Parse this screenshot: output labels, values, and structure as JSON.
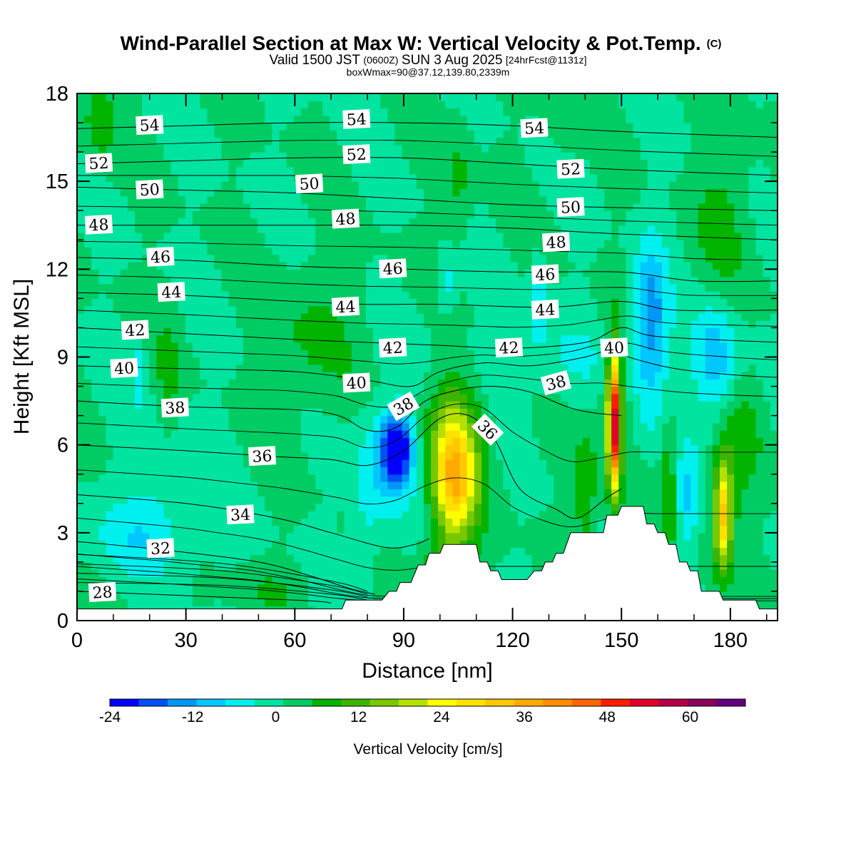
{
  "title": {
    "main": "Wind-Parallel Section at Max W: Vertical Velocity & Pot.Temp.",
    "copyright": "(C)",
    "valid_prefix": "Valid 1500 JST",
    "valid_utc": "(0600Z)",
    "valid_date": "SUN 3 Aug 2025",
    "forecast": "[24hrFcst@1131z]",
    "box": "boxWmax=90@37.12,139.80,2339m"
  },
  "chart_data": {
    "type": "heatmap",
    "xlabel": "Distance [nm]",
    "ylabel": "Height [Kft MSL]",
    "xlim": [
      0,
      193
    ],
    "ylim": [
      0,
      18
    ],
    "x_ticks": [
      "0",
      "30",
      "60",
      "90",
      "120",
      "150",
      "180"
    ],
    "y_ticks": [
      "0",
      "3",
      "6",
      "9",
      "12",
      "15",
      "18"
    ],
    "colorbar": {
      "label": "Vertical Velocity [cm/s]",
      "tick_labels": [
        "-24",
        "-12",
        "0",
        "12",
        "24",
        "36",
        "48",
        "60"
      ],
      "min": -24,
      "max": 68,
      "step": 4,
      "colors": [
        "#0000ff",
        "#0050f5",
        "#0096f5",
        "#00c8ff",
        "#00f0f0",
        "#00e4a0",
        "#00cc64",
        "#00b400",
        "#3cb400",
        "#78c800",
        "#b4e100",
        "#ffff00",
        "#ffe100",
        "#ffc800",
        "#ffaa00",
        "#ff8c00",
        "#ff6400",
        "#ff1e00",
        "#e10028",
        "#b40046",
        "#8c005a",
        "#64007d"
      ]
    },
    "terrain": [
      [
        0,
        0.4
      ],
      [
        73,
        0.4
      ],
      [
        74,
        0.7
      ],
      [
        84,
        0.7
      ],
      [
        86,
        1.0
      ],
      [
        88,
        1.0
      ],
      [
        89,
        1.3
      ],
      [
        92,
        1.3
      ],
      [
        94,
        1.9
      ],
      [
        96,
        1.9
      ],
      [
        97,
        2.3
      ],
      [
        100,
        2.3
      ],
      [
        101,
        2.6
      ],
      [
        110,
        2.6
      ],
      [
        111,
        2.0
      ],
      [
        113,
        2.0
      ],
      [
        114,
        1.7
      ],
      [
        116,
        1.7
      ],
      [
        117,
        1.4
      ],
      [
        124,
        1.4
      ],
      [
        126,
        1.7
      ],
      [
        128,
        1.7
      ],
      [
        129,
        2.0
      ],
      [
        131,
        2.0
      ],
      [
        132,
        2.3
      ],
      [
        134,
        2.3
      ],
      [
        136,
        3.0
      ],
      [
        145,
        3.0
      ],
      [
        146,
        3.6
      ],
      [
        149,
        3.6
      ],
      [
        150,
        3.9
      ],
      [
        156,
        3.9
      ],
      [
        157,
        3.3
      ],
      [
        159,
        3.3
      ],
      [
        160,
        3.0
      ],
      [
        162,
        3.0
      ],
      [
        163,
        2.6
      ],
      [
        165,
        2.6
      ],
      [
        166,
        2.0
      ],
      [
        168,
        2.0
      ],
      [
        169,
        1.7
      ],
      [
        171,
        1.7
      ],
      [
        172,
        1.0
      ],
      [
        177,
        1.0
      ],
      [
        178,
        0.7
      ],
      [
        187,
        0.7
      ],
      [
        188,
        0.4
      ],
      [
        193,
        0.4
      ]
    ],
    "w_features": [
      {
        "x": 104,
        "z": 5.0,
        "sx": 5.5,
        "sz": 2.2,
        "amp": 24
      },
      {
        "x": 104,
        "z": 5.5,
        "sx": 9,
        "sz": 3.2,
        "amp": 10
      },
      {
        "x": 148,
        "z": 6.8,
        "sx": 1.6,
        "sz": 2.2,
        "amp": 46
      },
      {
        "x": 148,
        "z": 7.0,
        "sx": 4,
        "sz": 3.2,
        "amp": 8
      },
      {
        "x": 178,
        "z": 3.6,
        "sx": 2.3,
        "sz": 1.8,
        "amp": 24
      },
      {
        "x": 178,
        "z": 4.0,
        "sx": 5,
        "sz": 2.5,
        "amp": 6
      },
      {
        "x": 88,
        "z": 5.9,
        "sx": 4,
        "sz": 1.1,
        "amp": -24
      },
      {
        "x": 86,
        "z": 5.4,
        "sx": 9,
        "sz": 2.0,
        "amp": -8
      },
      {
        "x": 80,
        "z": 3.5,
        "sx": 4,
        "sz": 2.0,
        "amp": -4
      },
      {
        "x": 158,
        "z": 9.5,
        "sx": 5,
        "sz": 3.0,
        "amp": -10
      },
      {
        "x": 176,
        "z": 9.0,
        "sx": 6,
        "sz": 2.0,
        "amp": -11
      },
      {
        "x": 168,
        "z": 4.0,
        "sx": 3,
        "sz": 2.0,
        "amp": -8
      },
      {
        "x": 158,
        "z": 11.0,
        "sx": 4,
        "sz": 2.0,
        "amp": -6
      },
      {
        "x": 124,
        "z": 9.0,
        "sx": 30,
        "sz": 1.5,
        "amp": -4
      },
      {
        "x": 18,
        "z": 2.8,
        "sx": 16,
        "sz": 1.3,
        "amp": -6
      },
      {
        "x": 25,
        "z": 5.0,
        "sx": 12,
        "sz": 2.0,
        "amp": -4
      },
      {
        "x": 17,
        "z": 8.5,
        "sx": 2,
        "sz": 1.0,
        "amp": -7
      },
      {
        "x": 102,
        "z": 11.5,
        "sx": 3,
        "sz": 1.0,
        "amp": -7
      },
      {
        "x": 127,
        "z": 11.2,
        "sx": 2,
        "sz": 1.3,
        "amp": -7
      },
      {
        "x": 25,
        "z": 8.0,
        "sx": 3,
        "sz": 2.5,
        "amp": 5
      },
      {
        "x": 65,
        "z": 9.5,
        "sx": 12,
        "sz": 2.5,
        "amp": 5
      },
      {
        "x": 105,
        "z": 15.0,
        "sx": 4,
        "sz": 2.0,
        "amp": 5
      },
      {
        "x": 6,
        "z": 17.0,
        "sx": 5,
        "sz": 1.5,
        "amp": 6
      },
      {
        "x": 178,
        "z": 13.5,
        "sx": 8,
        "sz": 3.0,
        "amp": 5
      },
      {
        "x": 135,
        "z": 17.0,
        "sx": 5,
        "sz": 1.0,
        "amp": 4
      },
      {
        "x": 100,
        "z": 1.5,
        "sx": 5,
        "sz": 1.0,
        "amp": 8
      },
      {
        "x": 52,
        "z": 1.0,
        "sx": 8,
        "sz": 0.8,
        "amp": 4
      },
      {
        "x": 140,
        "z": 4.5,
        "sx": 3,
        "sz": 2.0,
        "amp": 8
      },
      {
        "x": 163,
        "z": 4.5,
        "sx": 2,
        "sz": 2.5,
        "amp": 8
      },
      {
        "x": 184,
        "z": 6.5,
        "sx": 5,
        "sz": 2.0,
        "amp": 5
      }
    ],
    "theta_contours": [
      {
        "value": 28,
        "label": "28",
        "pts": [
          [
            0,
            1.0
          ],
          [
            60,
            0.7
          ],
          [
            70,
            0.6
          ]
        ],
        "lx": 7,
        "ly": 0.95
      },
      {
        "value": 32,
        "label": "32",
        "pts": [
          [
            0,
            2.7
          ],
          [
            25,
            2.4
          ],
          [
            50,
            2.0
          ],
          [
            65,
            1.5
          ],
          [
            75,
            1.1
          ],
          [
            82,
            0.9
          ]
        ],
        "lx": 23,
        "ly": 2.45
      },
      {
        "value": 34,
        "label": "34",
        "pts": [
          [
            0,
            4.3
          ],
          [
            30,
            4.0
          ],
          [
            55,
            3.5
          ],
          [
            70,
            3.0
          ],
          [
            85,
            2.5
          ],
          [
            93,
            2.6
          ],
          [
            97,
            2.8
          ]
        ],
        "lx": 45,
        "ly": 3.6
      },
      {
        "value": 36,
        "label": "36",
        "pts": [
          [
            0,
            6.0
          ],
          [
            30,
            5.8
          ],
          [
            55,
            5.6
          ],
          [
            70,
            5.5
          ],
          [
            80,
            5.3
          ],
          [
            90,
            5.8
          ],
          [
            100,
            6.9
          ],
          [
            108,
            7.0
          ],
          [
            115,
            6.2
          ],
          [
            122,
            4.5
          ],
          [
            132,
            3.8
          ],
          [
            138,
            3.5
          ],
          [
            146,
            4.2
          ],
          [
            150,
            4.5
          ]
        ],
        "lx": 51,
        "ly": 5.6,
        "rot": 0
      },
      {
        "value": 38,
        "label": "38",
        "pts": [
          [
            0,
            7.5
          ],
          [
            30,
            7.3
          ],
          [
            60,
            7.2
          ],
          [
            72,
            7.0
          ],
          [
            80,
            6.5
          ],
          [
            88,
            6.6
          ],
          [
            96,
            7.5
          ],
          [
            106,
            7.9
          ],
          [
            115,
            8.0
          ],
          [
            125,
            7.8
          ],
          [
            135,
            7.3
          ],
          [
            142,
            7.1
          ],
          [
            150,
            7.0
          ]
        ],
        "lx": 27,
        "ly": 7.25
      },
      {
        "value": 40,
        "label": "40",
        "pts": [
          [
            0,
            8.7
          ],
          [
            30,
            8.6
          ],
          [
            60,
            8.5
          ],
          [
            80,
            8.2
          ],
          [
            92,
            8.0
          ],
          [
            100,
            8.5
          ],
          [
            112,
            8.8
          ],
          [
            125,
            8.7
          ],
          [
            140,
            9.0
          ],
          [
            148,
            9.3
          ],
          [
            152,
            9.0
          ],
          [
            165,
            8.6
          ],
          [
            180,
            8.4
          ],
          [
            193,
            8.3
          ]
        ],
        "lx": 13,
        "ly": 8.6
      },
      {
        "value": 42,
        "label": "42",
        "pts": [
          [
            0,
            10.0
          ],
          [
            30,
            9.8
          ],
          [
            60,
            9.6
          ],
          [
            80,
            9.5
          ],
          [
            100,
            9.4
          ],
          [
            120,
            9.3
          ],
          [
            140,
            9.5
          ],
          [
            150,
            10.0
          ],
          [
            160,
            9.7
          ],
          [
            193,
            9.5
          ]
        ],
        "lx": 16,
        "ly": 9.9
      },
      {
        "value": 44,
        "label": "44",
        "pts": [
          [
            0,
            11.2
          ],
          [
            30,
            11.1
          ],
          [
            60,
            10.9
          ],
          [
            80,
            10.8
          ],
          [
            100,
            10.8
          ],
          [
            130,
            10.7
          ],
          [
            150,
            10.9
          ],
          [
            165,
            10.6
          ],
          [
            193,
            10.6
          ]
        ],
        "lx": 26,
        "ly": 11.2
      },
      {
        "value": 46,
        "label": "46",
        "pts": [
          [
            0,
            12.4
          ],
          [
            30,
            12.3
          ],
          [
            60,
            12.1
          ],
          [
            90,
            12.0
          ],
          [
            120,
            11.9
          ],
          [
            150,
            11.9
          ],
          [
            170,
            11.6
          ],
          [
            193,
            11.6
          ]
        ],
        "lx": 23,
        "ly": 12.4
      },
      {
        "value": 48,
        "label": "48",
        "pts": [
          [
            0,
            13.5
          ],
          [
            30,
            13.5
          ],
          [
            60,
            13.5
          ],
          [
            90,
            13.5
          ],
          [
            120,
            13.4
          ],
          [
            150,
            13.2
          ],
          [
            193,
            13.0
          ]
        ],
        "lx": 6,
        "ly": 13.5
      },
      {
        "value": 50,
        "label": "50",
        "pts": [
          [
            0,
            14.8
          ],
          [
            30,
            14.7
          ],
          [
            60,
            14.6
          ],
          [
            90,
            14.4
          ],
          [
            120,
            14.2
          ],
          [
            150,
            14.1
          ],
          [
            193,
            14.0
          ]
        ],
        "lx": 20,
        "ly": 14.7
      },
      {
        "value": 52,
        "label": "52",
        "pts": [
          [
            0,
            15.6
          ],
          [
            30,
            15.7
          ],
          [
            60,
            15.8
          ],
          [
            90,
            15.8
          ],
          [
            120,
            15.6
          ],
          [
            150,
            15.4
          ],
          [
            193,
            15.2
          ]
        ],
        "lx": 6,
        "ly": 15.6
      },
      {
        "value": 54,
        "label": "54",
        "pts": [
          [
            0,
            16.8
          ],
          [
            30,
            16.9
          ],
          [
            60,
            17.0
          ],
          [
            90,
            17.0
          ],
          [
            120,
            16.9
          ],
          [
            150,
            16.7
          ],
          [
            193,
            16.5
          ]
        ],
        "lx": 20,
        "ly": 16.9
      }
    ],
    "extra_labels": [
      {
        "label": "36",
        "x": 113,
        "y": 6.5,
        "rot": 45
      },
      {
        "label": "38",
        "x": 90,
        "y": 7.3,
        "rot": -30
      },
      {
        "label": "38",
        "x": 132,
        "y": 8.1,
        "rot": -15
      },
      {
        "label": "40",
        "x": 77,
        "y": 8.1
      },
      {
        "label": "40",
        "x": 148,
        "y": 9.3
      },
      {
        "label": "42",
        "x": 87,
        "y": 9.3
      },
      {
        "label": "42",
        "x": 119,
        "y": 9.3
      },
      {
        "label": "44",
        "x": 74,
        "y": 10.7
      },
      {
        "label": "44",
        "x": 129,
        "y": 10.6
      },
      {
        "label": "46",
        "x": 87,
        "y": 12.0
      },
      {
        "label": "46",
        "x": 129,
        "y": 11.8
      },
      {
        "label": "48",
        "x": 74,
        "y": 13.7
      },
      {
        "label": "48",
        "x": 132,
        "y": 12.9
      },
      {
        "label": "50",
        "x": 64,
        "y": 14.9
      },
      {
        "label": "50",
        "x": 136,
        "y": 14.1
      },
      {
        "label": "52",
        "x": 77,
        "y": 15.9
      },
      {
        "label": "52",
        "x": 136,
        "y": 15.4
      },
      {
        "label": "54",
        "x": 77,
        "y": 17.1
      },
      {
        "label": "54",
        "x": 126,
        "y": 16.8
      }
    ]
  }
}
